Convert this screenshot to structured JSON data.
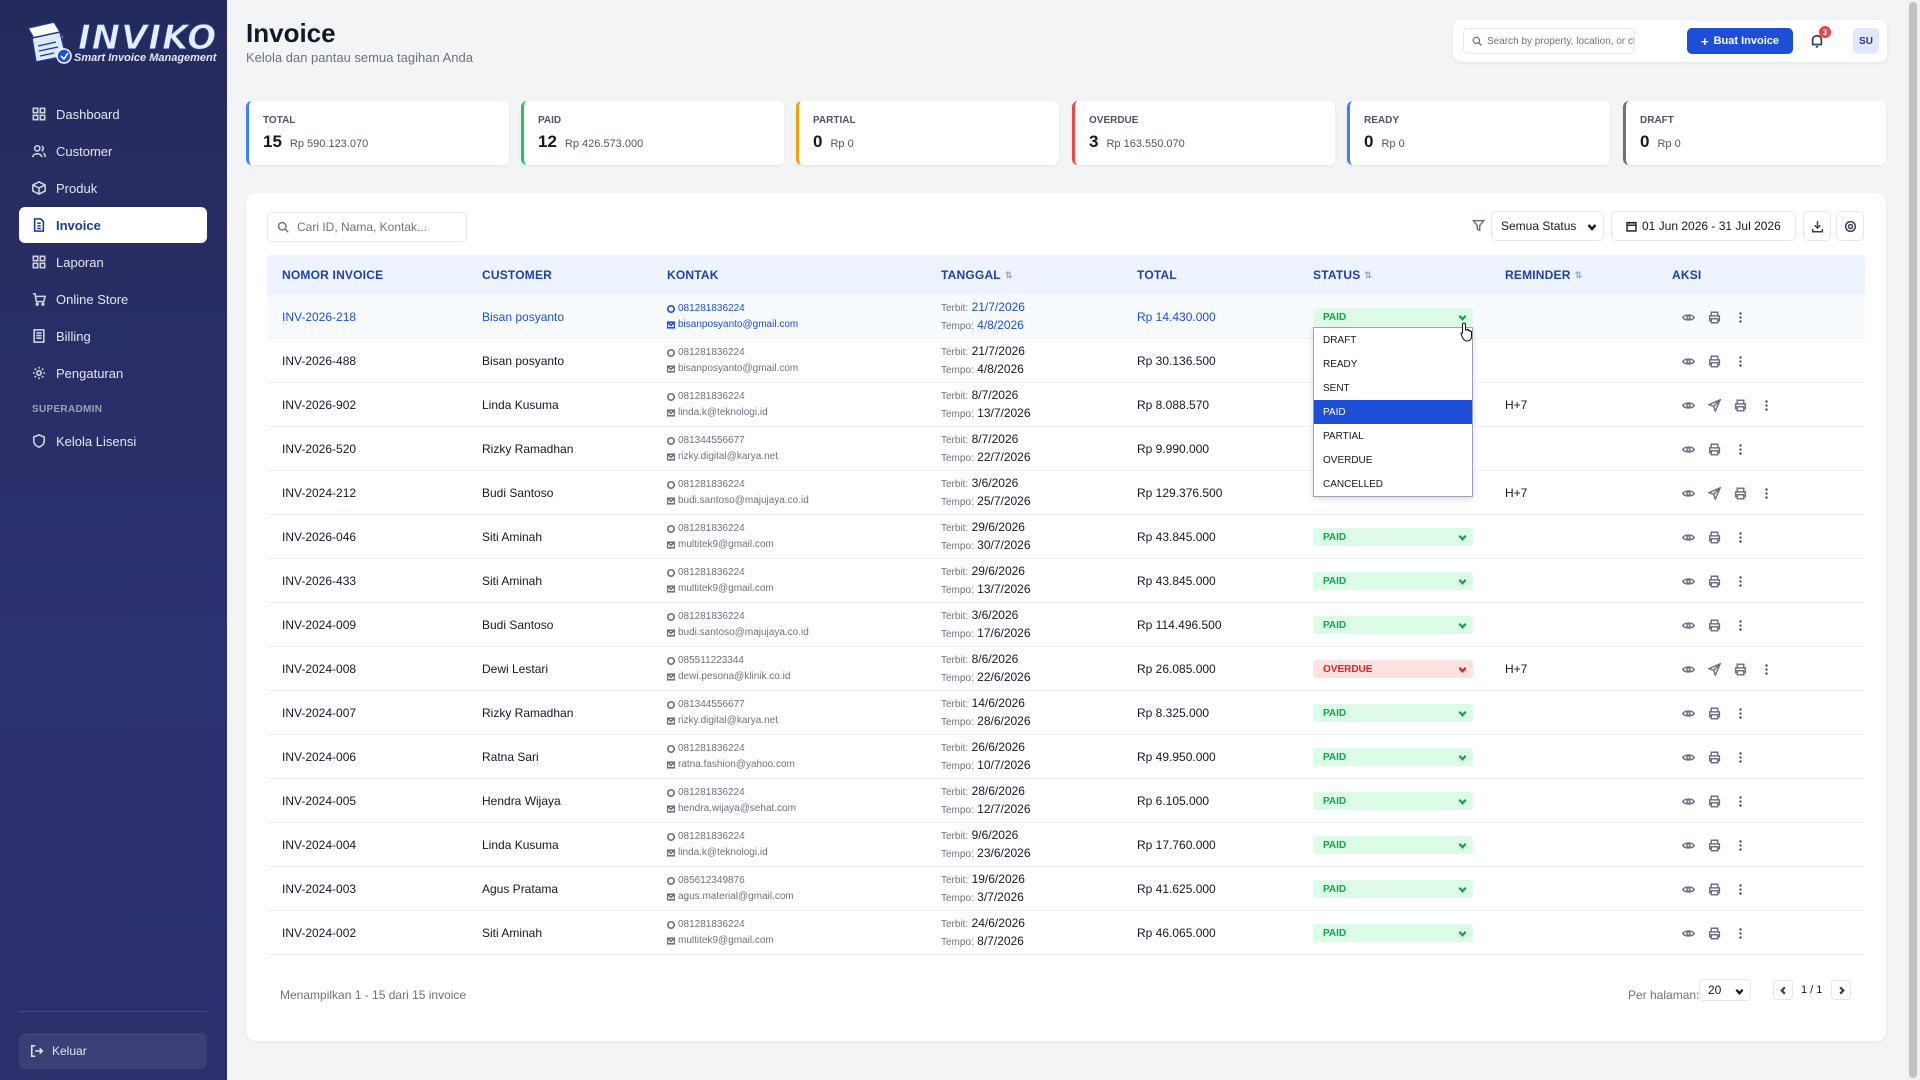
{
  "brand": {
    "title": "INVIKO",
    "subtitle": "Smart Invoice Management",
    "badge": "INVOICE"
  },
  "sidebar": {
    "items": [
      {
        "label": "Dashboard",
        "icon": "dashboard-icon"
      },
      {
        "label": "Customer",
        "icon": "users-icon"
      },
      {
        "label": "Produk",
        "icon": "box-icon"
      },
      {
        "label": "Invoice",
        "icon": "file-icon",
        "active": true
      },
      {
        "label": "Laporan",
        "icon": "grid-icon"
      },
      {
        "label": "Online Store",
        "icon": "cart-icon"
      },
      {
        "label": "Billing",
        "icon": "billing-icon"
      },
      {
        "label": "Pengaturan",
        "icon": "gear-icon"
      }
    ],
    "section_label": "SUPERADMIN",
    "admin_item": {
      "label": "Kelola Lisensi",
      "icon": "shield-icon"
    },
    "logout_label": "Keluar"
  },
  "header": {
    "title": "Invoice",
    "subtitle": "Kelola dan pantau semua tagihan Anda",
    "search_placeholder": "Search by property, location, or cli",
    "create_button": "Buat Invoice",
    "notif_count": "3",
    "avatar": "SU"
  },
  "stats": [
    {
      "label": "TOTAL",
      "count": "15",
      "amount": "Rp 590.123.070",
      "color": "#3b82f6"
    },
    {
      "label": "PAID",
      "count": "12",
      "amount": "Rp 426.573.000",
      "color": "#22c55e"
    },
    {
      "label": "PARTIAL",
      "count": "0",
      "amount": "Rp 0",
      "color": "#f59e0b"
    },
    {
      "label": "OVERDUE",
      "count": "3",
      "amount": "Rp 163.550.070",
      "color": "#ef4444"
    },
    {
      "label": "READY",
      "count": "0",
      "amount": "Rp 0",
      "color": "#3b82f6"
    },
    {
      "label": "DRAFT",
      "count": "0",
      "amount": "Rp 0",
      "color": "#6b7280"
    }
  ],
  "toolbar": {
    "search_placeholder": "Cari ID, Nama, Kontak...",
    "status_filter": "Semua Status",
    "date_range": "01 Jun 2026 - 31 Jul 2026"
  },
  "table": {
    "columns": [
      "NOMOR INVOICE",
      "CUSTOMER",
      "KONTAK",
      "TANGGAL",
      "TOTAL",
      "STATUS",
      "REMINDER",
      "AKSI"
    ],
    "issued_label": "Terbit:",
    "due_label": "Tempo:",
    "rows": [
      {
        "id": "INV-2026-218",
        "customer": "Bisan posyanto",
        "phone": "081281836224",
        "email": "bisanposyanto@gmail.com",
        "issued": "21/7/2026",
        "due": "4/8/2026",
        "total": "Rp 14.430.000",
        "status": "PAID",
        "reminder": "",
        "send": false
      },
      {
        "id": "INV-2026-488",
        "customer": "Bisan posyanto",
        "phone": "081281836224",
        "email": "bisanposyanto@gmail.com",
        "issued": "21/7/2026",
        "due": "4/8/2026",
        "total": "Rp 30.136.500",
        "status": "",
        "reminder": "",
        "send": false
      },
      {
        "id": "INV-2026-902",
        "customer": "Linda Kusuma",
        "phone": "081281836224",
        "email": "linda.k@teknologi.id",
        "issued": "8/7/2026",
        "due": "13/7/2026",
        "total": "Rp 8.088.570",
        "status": "",
        "reminder": "H+7",
        "send": true
      },
      {
        "id": "INV-2026-520",
        "customer": "Rizky Ramadhan",
        "phone": "081344556677",
        "email": "rizky.digital@karya.net",
        "issued": "8/7/2026",
        "due": "22/7/2026",
        "total": "Rp 9.990.000",
        "status": "",
        "reminder": "",
        "send": false
      },
      {
        "id": "INV-2024-212",
        "customer": "Budi Santoso",
        "phone": "081281836224",
        "email": "budi.santoso@majujaya.co.id",
        "issued": "3/6/2026",
        "due": "25/7/2026",
        "total": "Rp 129.376.500",
        "status": "",
        "reminder": "H+7",
        "send": true
      },
      {
        "id": "INV-2026-046",
        "customer": "Siti Aminah",
        "phone": "081281836224",
        "email": "multitek9@gmail.com",
        "issued": "29/6/2026",
        "due": "30/7/2026",
        "total": "Rp 43.845.000",
        "status": "PAID",
        "reminder": "",
        "send": false
      },
      {
        "id": "INV-2026-433",
        "customer": "Siti Aminah",
        "phone": "081281836224",
        "email": "multitek9@gmail.com",
        "issued": "29/6/2026",
        "due": "13/7/2026",
        "total": "Rp 43.845.000",
        "status": "PAID",
        "reminder": "",
        "send": false
      },
      {
        "id": "INV-2024-009",
        "customer": "Budi Santoso",
        "phone": "081281836224",
        "email": "budi.santoso@majujaya.co.id",
        "issued": "3/6/2026",
        "due": "17/6/2026",
        "total": "Rp 114.496.500",
        "status": "PAID",
        "reminder": "",
        "send": false
      },
      {
        "id": "INV-2024-008",
        "customer": "Dewi Lestari",
        "phone": "085511223344",
        "email": "dewi.pesona@klinik.co.id",
        "issued": "8/6/2026",
        "due": "22/6/2026",
        "total": "Rp 26.085.000",
        "status": "OVERDUE",
        "reminder": "H+7",
        "send": true
      },
      {
        "id": "INV-2024-007",
        "customer": "Rizky Ramadhan",
        "phone": "081344556677",
        "email": "rizky.digital@karya.net",
        "issued": "14/6/2026",
        "due": "28/6/2026",
        "total": "Rp 8.325.000",
        "status": "PAID",
        "reminder": "",
        "send": false
      },
      {
        "id": "INV-2024-006",
        "customer": "Ratna Sari",
        "phone": "081281836224",
        "email": "ratna.fashion@yahoo.com",
        "issued": "26/6/2026",
        "due": "10/7/2026",
        "total": "Rp 49.950.000",
        "status": "PAID",
        "reminder": "",
        "send": false
      },
      {
        "id": "INV-2024-005",
        "customer": "Hendra Wijaya",
        "phone": "081281836224",
        "email": "hendra.wijaya@sehat.com",
        "issued": "28/6/2026",
        "due": "12/7/2026",
        "total": "Rp 6.105.000",
        "status": "PAID",
        "reminder": "",
        "send": false
      },
      {
        "id": "INV-2024-004",
        "customer": "Linda Kusuma",
        "phone": "081281836224",
        "email": "linda.k@teknologi.id",
        "issued": "9/6/2026",
        "due": "23/6/2026",
        "total": "Rp 17.760.000",
        "status": "PAID",
        "reminder": "",
        "send": false
      },
      {
        "id": "INV-2024-003",
        "customer": "Agus Pratama",
        "phone": "085612349876",
        "email": "agus.material@gmail.com",
        "issued": "19/6/2026",
        "due": "3/7/2026",
        "total": "Rp 41.625.000",
        "status": "PAID",
        "reminder": "",
        "send": false
      },
      {
        "id": "INV-2024-002",
        "customer": "Siti Aminah",
        "phone": "081281836224",
        "email": "multitek9@gmail.com",
        "issued": "24/6/2026",
        "due": "8/7/2026",
        "total": "Rp 46.065.000",
        "status": "PAID",
        "reminder": "",
        "send": false
      }
    ]
  },
  "status_dropdown": {
    "options": [
      "DRAFT",
      "READY",
      "SENT",
      "PAID",
      "PARTIAL",
      "OVERDUE",
      "CANCELLED"
    ],
    "selected": "PAID"
  },
  "footer": {
    "summary": "Menampilkan 1 - 15 dari 15 invoice",
    "per_page_label": "Per halaman:",
    "per_page": "20",
    "page_info": "1 / 1"
  }
}
